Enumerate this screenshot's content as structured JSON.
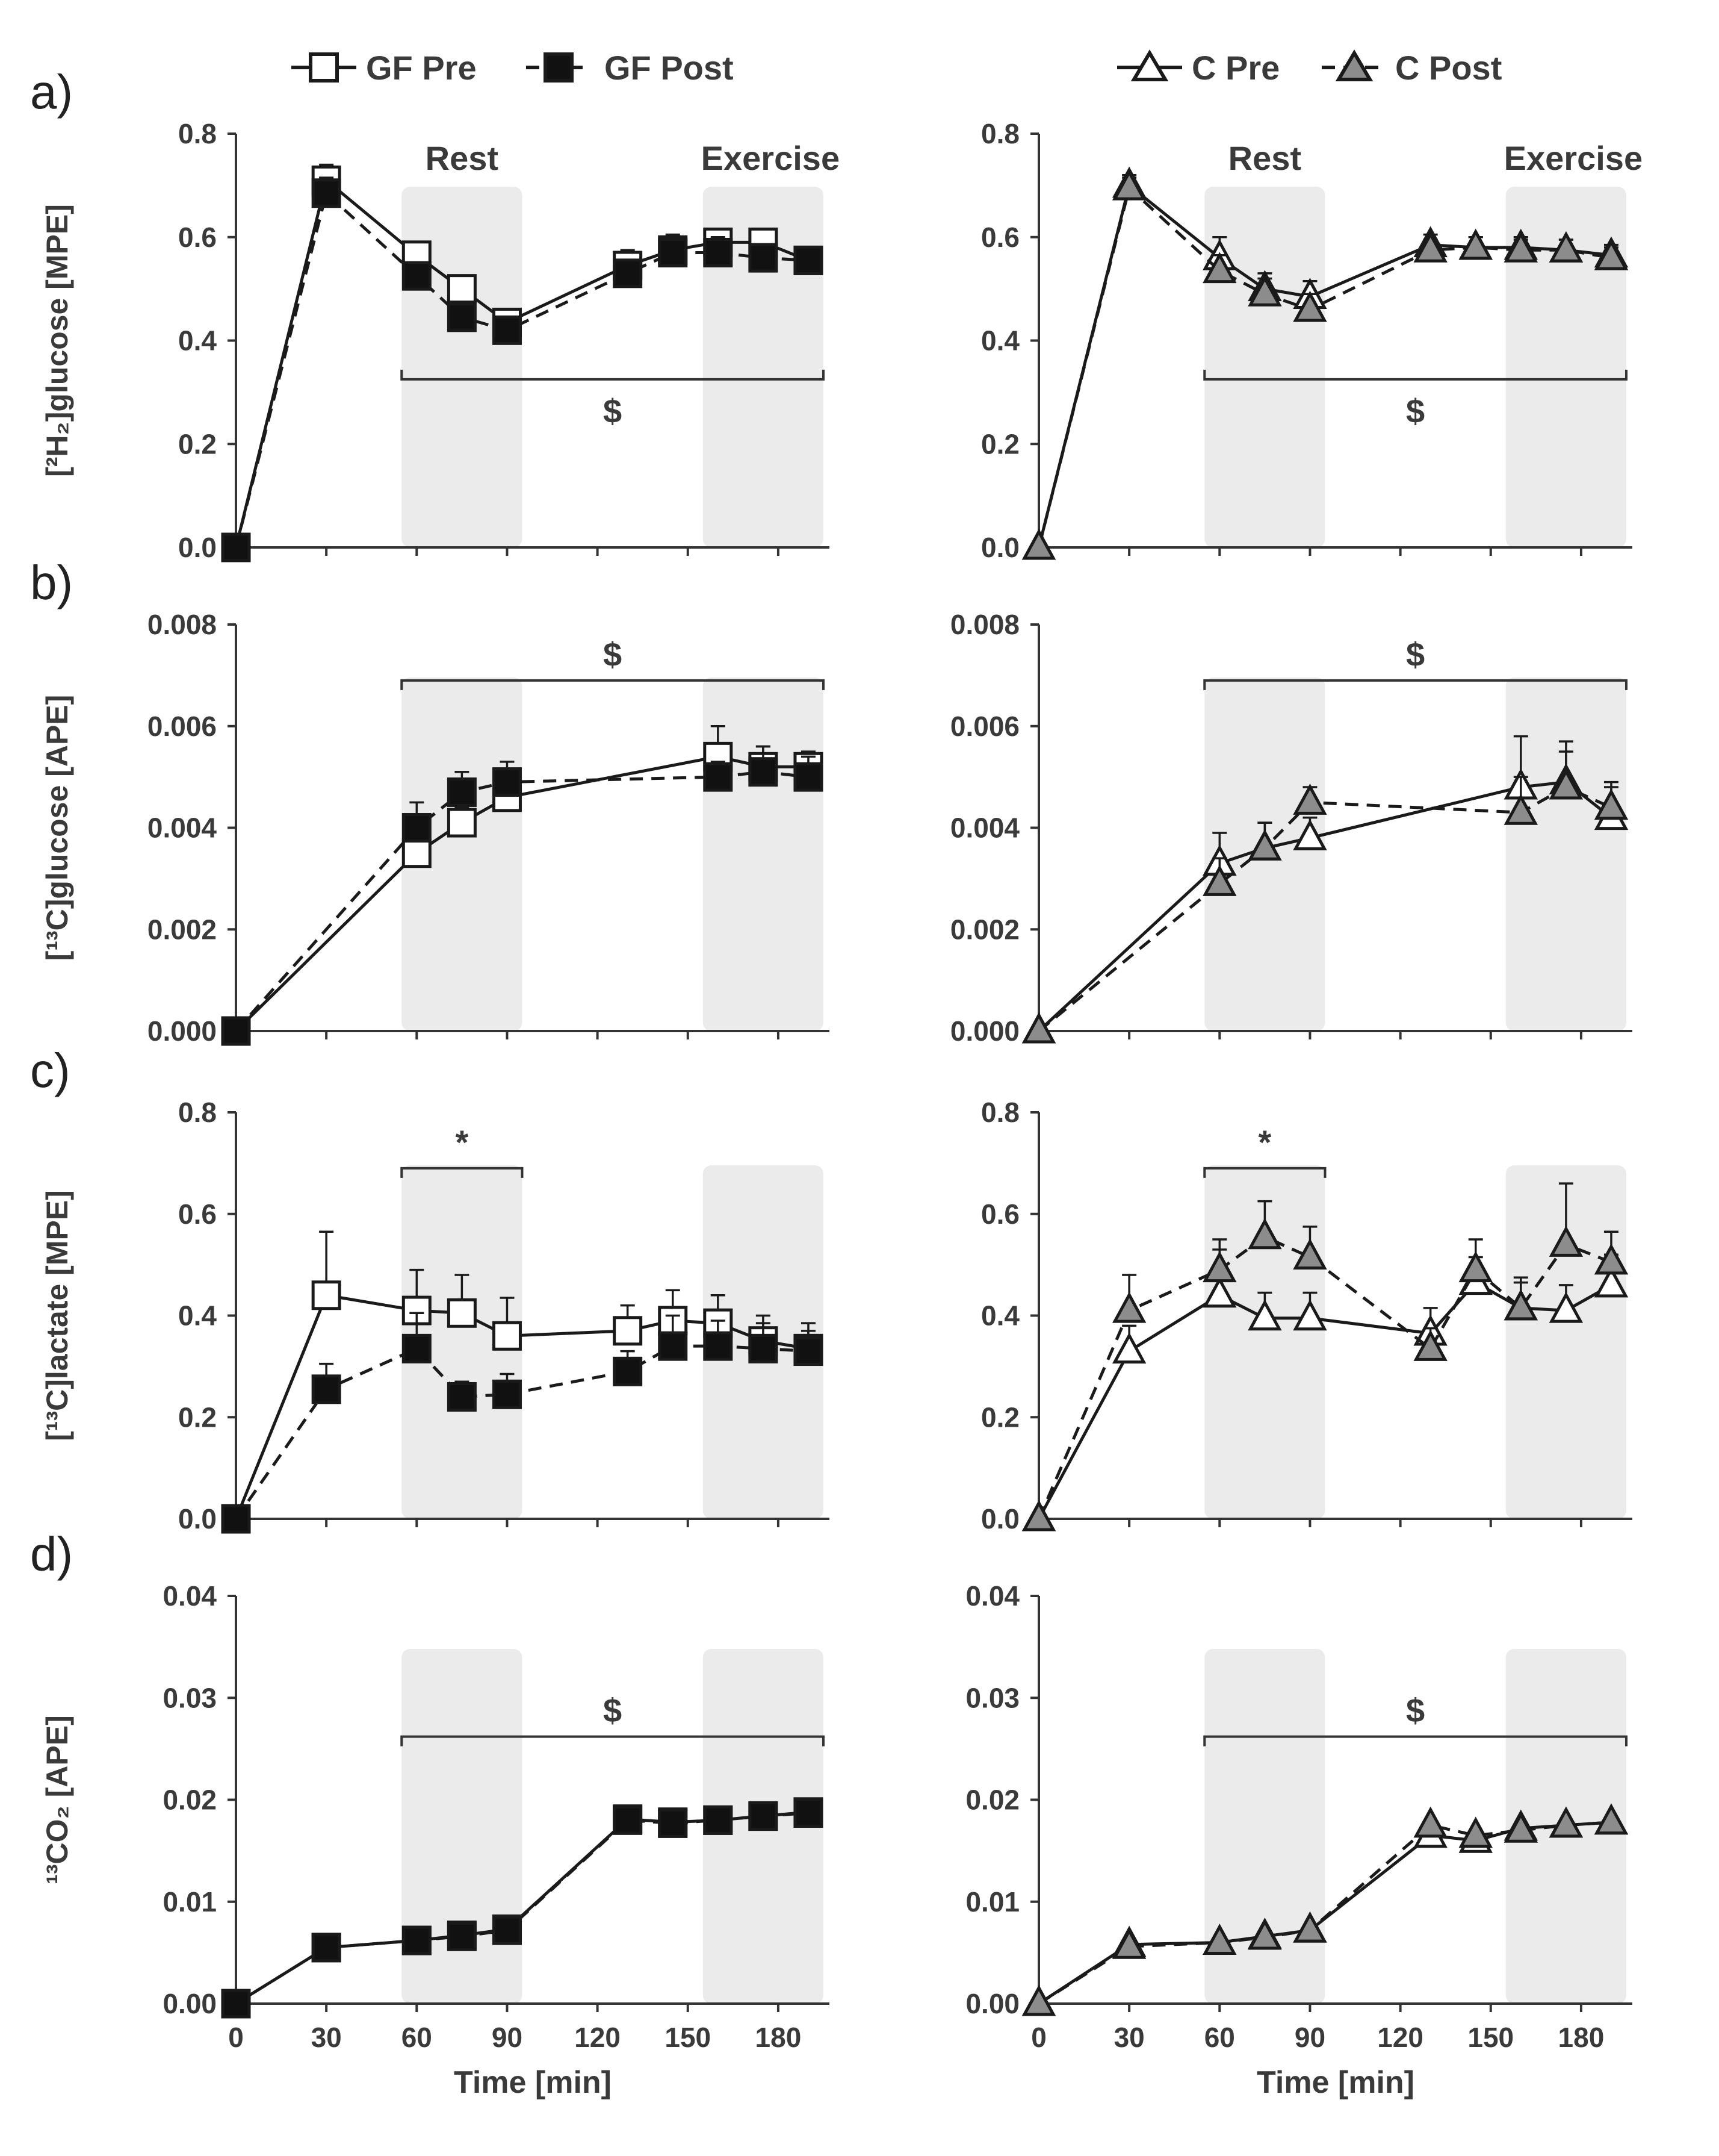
{
  "legend": {
    "gf_pre": "GF Pre",
    "gf_post": "GF Post",
    "c_pre": "C Pre",
    "c_post": "C Post"
  },
  "phase_labels": {
    "rest": "Rest",
    "exercise": "Exercise"
  },
  "x_label": "Time [min]",
  "x_ticks": [
    "0",
    "30",
    "60",
    "90",
    "120",
    "150",
    "180"
  ],
  "colors": {
    "shade": "#ebebeb",
    "pre_fill": "#ffffff",
    "gf_post_fill": "#111111",
    "c_post_fill": "#8c8c8c",
    "line": "#1a1a1a"
  },
  "chart_data": [
    {
      "id": "a",
      "panel_label": "a)",
      "type": "line",
      "ylabel": "[²H₂]glucose [MPE]",
      "ylim": [
        0,
        0.8
      ],
      "yticks": [
        "0.0",
        "0.2",
        "0.4",
        "0.6",
        "0.8"
      ],
      "show_phase_labels": true,
      "bracket": {
        "label": "$",
        "from": 55,
        "to": 195,
        "y": 0.325,
        "label_pos": "below"
      },
      "series": [
        {
          "name": "GF Pre",
          "x": [
            0,
            30,
            60,
            75,
            90,
            130,
            145,
            160,
            175,
            190
          ],
          "values": [
            0,
            0.71,
            0.565,
            0.5,
            0.435,
            0.545,
            0.575,
            0.59,
            0.59,
            0.555
          ],
          "err": [
            0,
            0.03,
            0.02,
            0.02,
            0.02,
            0.03,
            0.03,
            0.025,
            0.025,
            0.02
          ]
        },
        {
          "name": "GF Post",
          "x": [
            0,
            30,
            60,
            75,
            90,
            130,
            145,
            160,
            175,
            190
          ],
          "values": [
            0,
            0.685,
            0.525,
            0.445,
            0.42,
            0.53,
            0.57,
            0.57,
            0.56,
            0.555
          ],
          "err": [
            0,
            0.03,
            0.02,
            0.02,
            0.02,
            0.02,
            0.03,
            0.03,
            0.02,
            0.02
          ]
        }
      ]
    },
    {
      "id": "a2",
      "panel_label": "",
      "type": "line",
      "ylabel": "",
      "ylim": [
        0,
        0.8
      ],
      "yticks": [
        "0.0",
        "0.2",
        "0.4",
        "0.6",
        "0.8"
      ],
      "show_phase_labels": true,
      "bracket": {
        "label": "$",
        "from": 55,
        "to": 195,
        "y": 0.325,
        "label_pos": "below"
      },
      "series": [
        {
          "name": "C Pre",
          "x": [
            0,
            30,
            60,
            75,
            90,
            130,
            145,
            160,
            175,
            190
          ],
          "values": [
            0,
            0.7,
            0.56,
            0.5,
            0.485,
            0.585,
            0.58,
            0.58,
            0.575,
            0.565
          ],
          "err": [
            0,
            0.02,
            0.04,
            0.03,
            0.03,
            0.02,
            0.02,
            0.02,
            0.02,
            0.02
          ]
        },
        {
          "name": "C Post",
          "x": [
            0,
            30,
            60,
            75,
            90,
            130,
            145,
            160,
            175,
            190
          ],
          "values": [
            0,
            0.695,
            0.535,
            0.49,
            0.46,
            0.575,
            0.58,
            0.575,
            0.575,
            0.56
          ],
          "err": [
            0,
            0.02,
            0.03,
            0.03,
            0.03,
            0.02,
            0.02,
            0.02,
            0.02,
            0.02
          ]
        }
      ]
    },
    {
      "id": "b",
      "panel_label": "b)",
      "type": "line",
      "ylabel": "[¹³C]glucose [APE]",
      "ylim": [
        0,
        0.008
      ],
      "yticks": [
        "0.000",
        "0.002",
        "0.004",
        "0.006",
        "0.008"
      ],
      "show_phase_labels": false,
      "bracket": {
        "label": "$",
        "from": 55,
        "to": 195,
        "y": 0.0069,
        "label_pos": "above"
      },
      "series": [
        {
          "name": "GF Pre",
          "x": [
            0,
            60,
            75,
            90,
            160,
            175,
            190
          ],
          "values": [
            0,
            0.0035,
            0.0041,
            0.0046,
            0.0054,
            0.0052,
            0.0052
          ],
          "err": [
            0,
            0.0003,
            0.0003,
            0.0003,
            0.0006,
            0.0004,
            0.0003
          ]
        },
        {
          "name": "GF Post",
          "x": [
            0,
            60,
            75,
            90,
            160,
            175,
            190
          ],
          "values": [
            0,
            0.004,
            0.0047,
            0.0049,
            0.005,
            0.0051,
            0.005
          ],
          "err": [
            0,
            0.0005,
            0.0004,
            0.0004,
            0.0003,
            0.0005,
            0.0004
          ]
        }
      ]
    },
    {
      "id": "b2",
      "panel_label": "",
      "type": "line",
      "ylabel": "",
      "ylim": [
        0,
        0.008
      ],
      "yticks": [
        "0.000",
        "0.002",
        "0.004",
        "0.006",
        "0.008"
      ],
      "show_phase_labels": false,
      "bracket": {
        "label": "$",
        "from": 55,
        "to": 195,
        "y": 0.0069,
        "label_pos": "above"
      },
      "series": [
        {
          "name": "C Pre",
          "x": [
            0,
            60,
            75,
            90,
            160,
            175,
            190
          ],
          "values": [
            0,
            0.0033,
            0.0036,
            0.0038,
            0.0048,
            0.0049,
            0.0042
          ],
          "err": [
            0,
            0.0006,
            0.0005,
            0.0004,
            0.001,
            0.0006,
            0.0006
          ]
        },
        {
          "name": "C Post",
          "x": [
            0,
            60,
            75,
            90,
            160,
            175,
            190
          ],
          "values": [
            0,
            0.0029,
            0.0036,
            0.0045,
            0.0043,
            0.0048,
            0.0044
          ],
          "err": [
            0,
            0.0005,
            0.0005,
            0.0003,
            0.0007,
            0.0009,
            0.0005
          ]
        }
      ]
    },
    {
      "id": "c",
      "panel_label": "c)",
      "type": "line",
      "ylabel": "[¹³C]lactate [MPE]",
      "ylim": [
        0,
        0.8
      ],
      "yticks": [
        "0.0",
        "0.2",
        "0.4",
        "0.6",
        "0.8"
      ],
      "show_phase_labels": false,
      "bracket": {
        "label": "*",
        "from": 55,
        "to": 95,
        "y": 0.69,
        "label_pos": "above"
      },
      "series": [
        {
          "name": "GF Pre",
          "x": [
            0,
            30,
            60,
            75,
            90,
            130,
            145,
            160,
            175,
            190
          ],
          "values": [
            0,
            0.44,
            0.41,
            0.405,
            0.36,
            0.37,
            0.39,
            0.385,
            0.35,
            0.335
          ],
          "err": [
            0,
            0.125,
            0.08,
            0.075,
            0.075,
            0.05,
            0.06,
            0.055,
            0.05,
            0.05
          ]
        },
        {
          "name": "GF Post",
          "x": [
            0,
            30,
            60,
            75,
            90,
            130,
            145,
            160,
            175,
            190
          ],
          "values": [
            0,
            0.255,
            0.335,
            0.24,
            0.245,
            0.29,
            0.34,
            0.34,
            0.335,
            0.33
          ],
          "err": [
            0,
            0.05,
            0.07,
            0.03,
            0.04,
            0.04,
            0.06,
            0.05,
            0.05,
            0.04
          ]
        }
      ]
    },
    {
      "id": "c2",
      "panel_label": "",
      "type": "line",
      "ylabel": "",
      "ylim": [
        0,
        0.8
      ],
      "yticks": [
        "0.0",
        "0.2",
        "0.4",
        "0.6",
        "0.8"
      ],
      "show_phase_labels": false,
      "bracket": {
        "label": "*",
        "from": 55,
        "to": 95,
        "y": 0.69,
        "label_pos": "above"
      },
      "series": [
        {
          "name": "C Pre",
          "x": [
            0,
            30,
            60,
            75,
            90,
            130,
            145,
            160,
            175,
            190
          ],
          "values": [
            0,
            0.33,
            0.44,
            0.395,
            0.395,
            0.365,
            0.465,
            0.415,
            0.41,
            0.46
          ],
          "err": [
            0,
            0.05,
            0.09,
            0.05,
            0.05,
            0.05,
            0.05,
            0.05,
            0.05,
            0.06
          ]
        },
        {
          "name": "C Post",
          "x": [
            0,
            30,
            60,
            75,
            90,
            130,
            145,
            160,
            175,
            190
          ],
          "values": [
            0,
            0.41,
            0.49,
            0.555,
            0.515,
            0.335,
            0.49,
            0.415,
            0.54,
            0.505
          ],
          "err": [
            0,
            0.07,
            0.06,
            0.07,
            0.06,
            0.04,
            0.06,
            0.06,
            0.12,
            0.06
          ]
        }
      ]
    },
    {
      "id": "d",
      "panel_label": "d)",
      "type": "line",
      "ylabel": "¹³CO₂ [APE]",
      "ylim": [
        0,
        0.04
      ],
      "yticks": [
        "0.00",
        "0.01",
        "0.02",
        "0.03",
        "0.04"
      ],
      "show_phase_labels": false,
      "bracket": {
        "label": "$",
        "from": 55,
        "to": 195,
        "y": 0.0262,
        "label_pos": "above"
      },
      "show_xticks": true,
      "series": [
        {
          "name": "GF Pre",
          "x": [
            0,
            30,
            60,
            75,
            90,
            130,
            145,
            160,
            175,
            190
          ],
          "values": [
            0,
            0.0055,
            0.0062,
            0.0067,
            0.0073,
            0.0181,
            0.0178,
            0.018,
            0.0184,
            0.0188
          ],
          "err": [
            0,
            0,
            0,
            0,
            0,
            0,
            0,
            0,
            0,
            0
          ]
        },
        {
          "name": "GF Post",
          "x": [
            0,
            30,
            60,
            75,
            90,
            130,
            145,
            160,
            175,
            190
          ],
          "values": [
            0,
            0.0055,
            0.0062,
            0.0066,
            0.0072,
            0.018,
            0.0177,
            0.018,
            0.0184,
            0.0187
          ],
          "err": [
            0,
            0,
            0,
            0,
            0,
            0,
            0,
            0,
            0,
            0
          ]
        }
      ]
    },
    {
      "id": "d2",
      "panel_label": "",
      "type": "line",
      "ylabel": "",
      "ylim": [
        0,
        0.04
      ],
      "yticks": [
        "0.00",
        "0.01",
        "0.02",
        "0.03",
        "0.04"
      ],
      "show_phase_labels": false,
      "bracket": {
        "label": "$",
        "from": 55,
        "to": 195,
        "y": 0.0262,
        "label_pos": "above"
      },
      "show_xticks": true,
      "series": [
        {
          "name": "C Pre",
          "x": [
            0,
            30,
            60,
            75,
            90,
            130,
            145,
            160,
            175,
            190
          ],
          "values": [
            0,
            0.0058,
            0.006,
            0.0066,
            0.0072,
            0.0165,
            0.016,
            0.0172,
            0.0175,
            0.0178
          ],
          "err": [
            0,
            0,
            0,
            0,
            0,
            0,
            0,
            0,
            0,
            0
          ]
        },
        {
          "name": "C Post",
          "x": [
            0,
            30,
            60,
            75,
            90,
            130,
            145,
            160,
            175,
            190
          ],
          "values": [
            0,
            0.0056,
            0.006,
            0.0065,
            0.0072,
            0.0175,
            0.0165,
            0.017,
            0.0175,
            0.0178
          ],
          "err": [
            0,
            0,
            0,
            0,
            0,
            0,
            0,
            0,
            0,
            0
          ]
        }
      ]
    }
  ]
}
